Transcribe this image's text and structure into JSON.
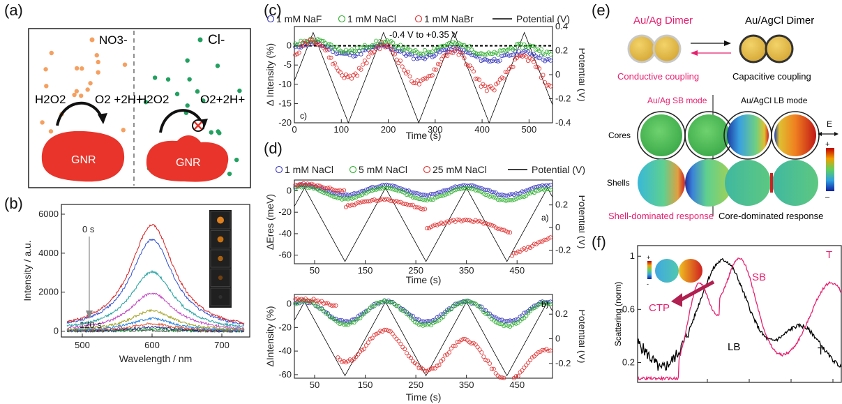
{
  "figure": {
    "panel_labels": [
      "(a)",
      "(b)",
      "(c)",
      "(d)",
      "(e)",
      "(f)"
    ]
  },
  "panel_a": {
    "left_ion": "NO3-",
    "right_ion": "Cl-",
    "reactant_left": "H2O2",
    "product_left": "O2 +2H+",
    "reactant_right": "H2O2",
    "product_right": "O2+2H+",
    "particle_label_left": "GNR",
    "particle_label_right": "GNR",
    "colors": {
      "nitrate": "#f5a060",
      "chloride": "#22a060",
      "gnr": "#e8342a"
    }
  },
  "panel_b": {
    "chart_data": {
      "type": "line",
      "xlabel": "Wavelength / nm",
      "ylabel": "Intensity / a.u.",
      "xlim": [
        470,
        740
      ],
      "ylim": [
        -300,
        6500
      ],
      "x_ticks": [
        500,
        600,
        700
      ],
      "y_ticks": [
        0,
        2000,
        4000,
        6000
      ],
      "annotation_start": "0 s",
      "annotation_end": "120 s",
      "center_nm": 600,
      "series": [
        {
          "peak": 5450,
          "color": "#d42020"
        },
        {
          "peak": 4700,
          "color": "#3050d0"
        },
        {
          "peak": 3050,
          "color": "#20a0a0"
        },
        {
          "peak": 1950,
          "color": "#c040c0"
        },
        {
          "peak": 1050,
          "color": "#a0a020"
        },
        {
          "peak": 650,
          "color": "#2080e0"
        },
        {
          "peak": 380,
          "color": "#e05030"
        },
        {
          "peak": 200,
          "color": "#202080"
        },
        {
          "peak": 100,
          "color": "#20a040"
        },
        {
          "peak": 40,
          "color": "#404040"
        }
      ]
    }
  },
  "panel_c": {
    "chart_data": {
      "type": "scatter",
      "xlabel": "Time (s)",
      "ylabel": "Δ Intensity (%)",
      "y2label": "Potential (V)",
      "annotation": "-0.4 V to +0.35 V",
      "corner_label": "c)",
      "xlim": [
        0,
        550
      ],
      "ylim": [
        -20,
        5
      ],
      "y2lim": [
        -0.4,
        0.4
      ],
      "x_ticks": [
        0,
        100,
        200,
        300,
        400,
        500
      ],
      "y_ticks": [
        -20,
        -15,
        -10,
        -5,
        0
      ],
      "y2_ticks": [
        -0.4,
        -0.2,
        0,
        0.2,
        0.4
      ],
      "y2_tick_labels": [
        "-0.4",
        "-0.2",
        "0",
        "0.2",
        "0.4"
      ],
      "legend": [
        "1 mM NaF",
        "1 mM NaCl",
        "1 mM NaBr",
        "Potential (V)"
      ],
      "colors": [
        "#3a3ac0",
        "#30b030",
        "#e03030",
        "#000000"
      ]
    }
  },
  "panel_d_top": {
    "chart_data": {
      "type": "scatter",
      "xlabel": "Time (s)",
      "ylabel": "ΔEres (meV)",
      "y2label": "Potential (V)",
      "corner_label": "a)",
      "xlim": [
        10,
        520
      ],
      "ylim": [
        -68,
        10
      ],
      "y2lim": [
        -0.32,
        0.42
      ],
      "x_ticks": [
        50,
        150,
        250,
        350,
        450
      ],
      "y_ticks": [
        -60,
        -40,
        -20,
        0
      ],
      "y2_ticks": [
        -0.2,
        0,
        0.2
      ],
      "y2_tick_labels": [
        "-0.2",
        "0",
        "0.2"
      ],
      "legend": [
        "1 mM NaCl",
        "5 mM NaCl",
        "25 mM NaCl",
        "Potential (V)"
      ],
      "colors": [
        "#3a3ac0",
        "#30b030",
        "#e03030",
        "#000000"
      ]
    }
  },
  "panel_d_bottom": {
    "chart_data": {
      "type": "scatter",
      "xlabel": "Time (s)",
      "ylabel": "ΔIntensity (%)",
      "y2label": "Potential (V)",
      "corner_label": "b)",
      "xlim": [
        10,
        520
      ],
      "ylim": [
        -63,
        8
      ],
      "y2lim": [
        -0.32,
        0.36
      ],
      "x_ticks": [
        50,
        150,
        250,
        350,
        450
      ],
      "y_ticks": [
        -60,
        -40,
        -20,
        0
      ],
      "y2_ticks": [
        -0.2,
        0,
        0.2
      ],
      "y2_tick_labels": [
        "-0.2",
        "0",
        "0.2"
      ],
      "colors": [
        "#3a3ac0",
        "#30b030",
        "#e03030",
        "#000000"
      ]
    }
  },
  "panel_e": {
    "title_left": "Au/Ag Dimer",
    "title_right": "Au/AgCl Dimer",
    "coupling_left": "Conductive coupling",
    "coupling_right": "Capacitive coupling",
    "mode_left": "Au/Ag SB mode",
    "mode_right": "Au/AgCl LB mode",
    "row_cores": "Cores",
    "row_shells": "Shells",
    "field_label": "E",
    "colorbar_plus": "+",
    "colorbar_minus": "–",
    "response_left": "Shell-dominated response",
    "response_right": "Core-dominated response"
  },
  "panel_f": {
    "chart_data": {
      "type": "line",
      "ylabel": "Scattering (norm)",
      "y_ticks": [
        0.2,
        0.6,
        1
      ],
      "y_tick_labels": [
        "0.2",
        "0.6",
        "1"
      ],
      "ylim": [
        0.05,
        1.08
      ],
      "labels": {
        "ctp": "CTP",
        "sb": "SB",
        "t_top": "T",
        "lb": "LB",
        "t_bottom": "T"
      },
      "colorbar_plus": "+",
      "colorbar_minus": "-",
      "colors": [
        "#e6206e",
        "#000000"
      ]
    }
  }
}
